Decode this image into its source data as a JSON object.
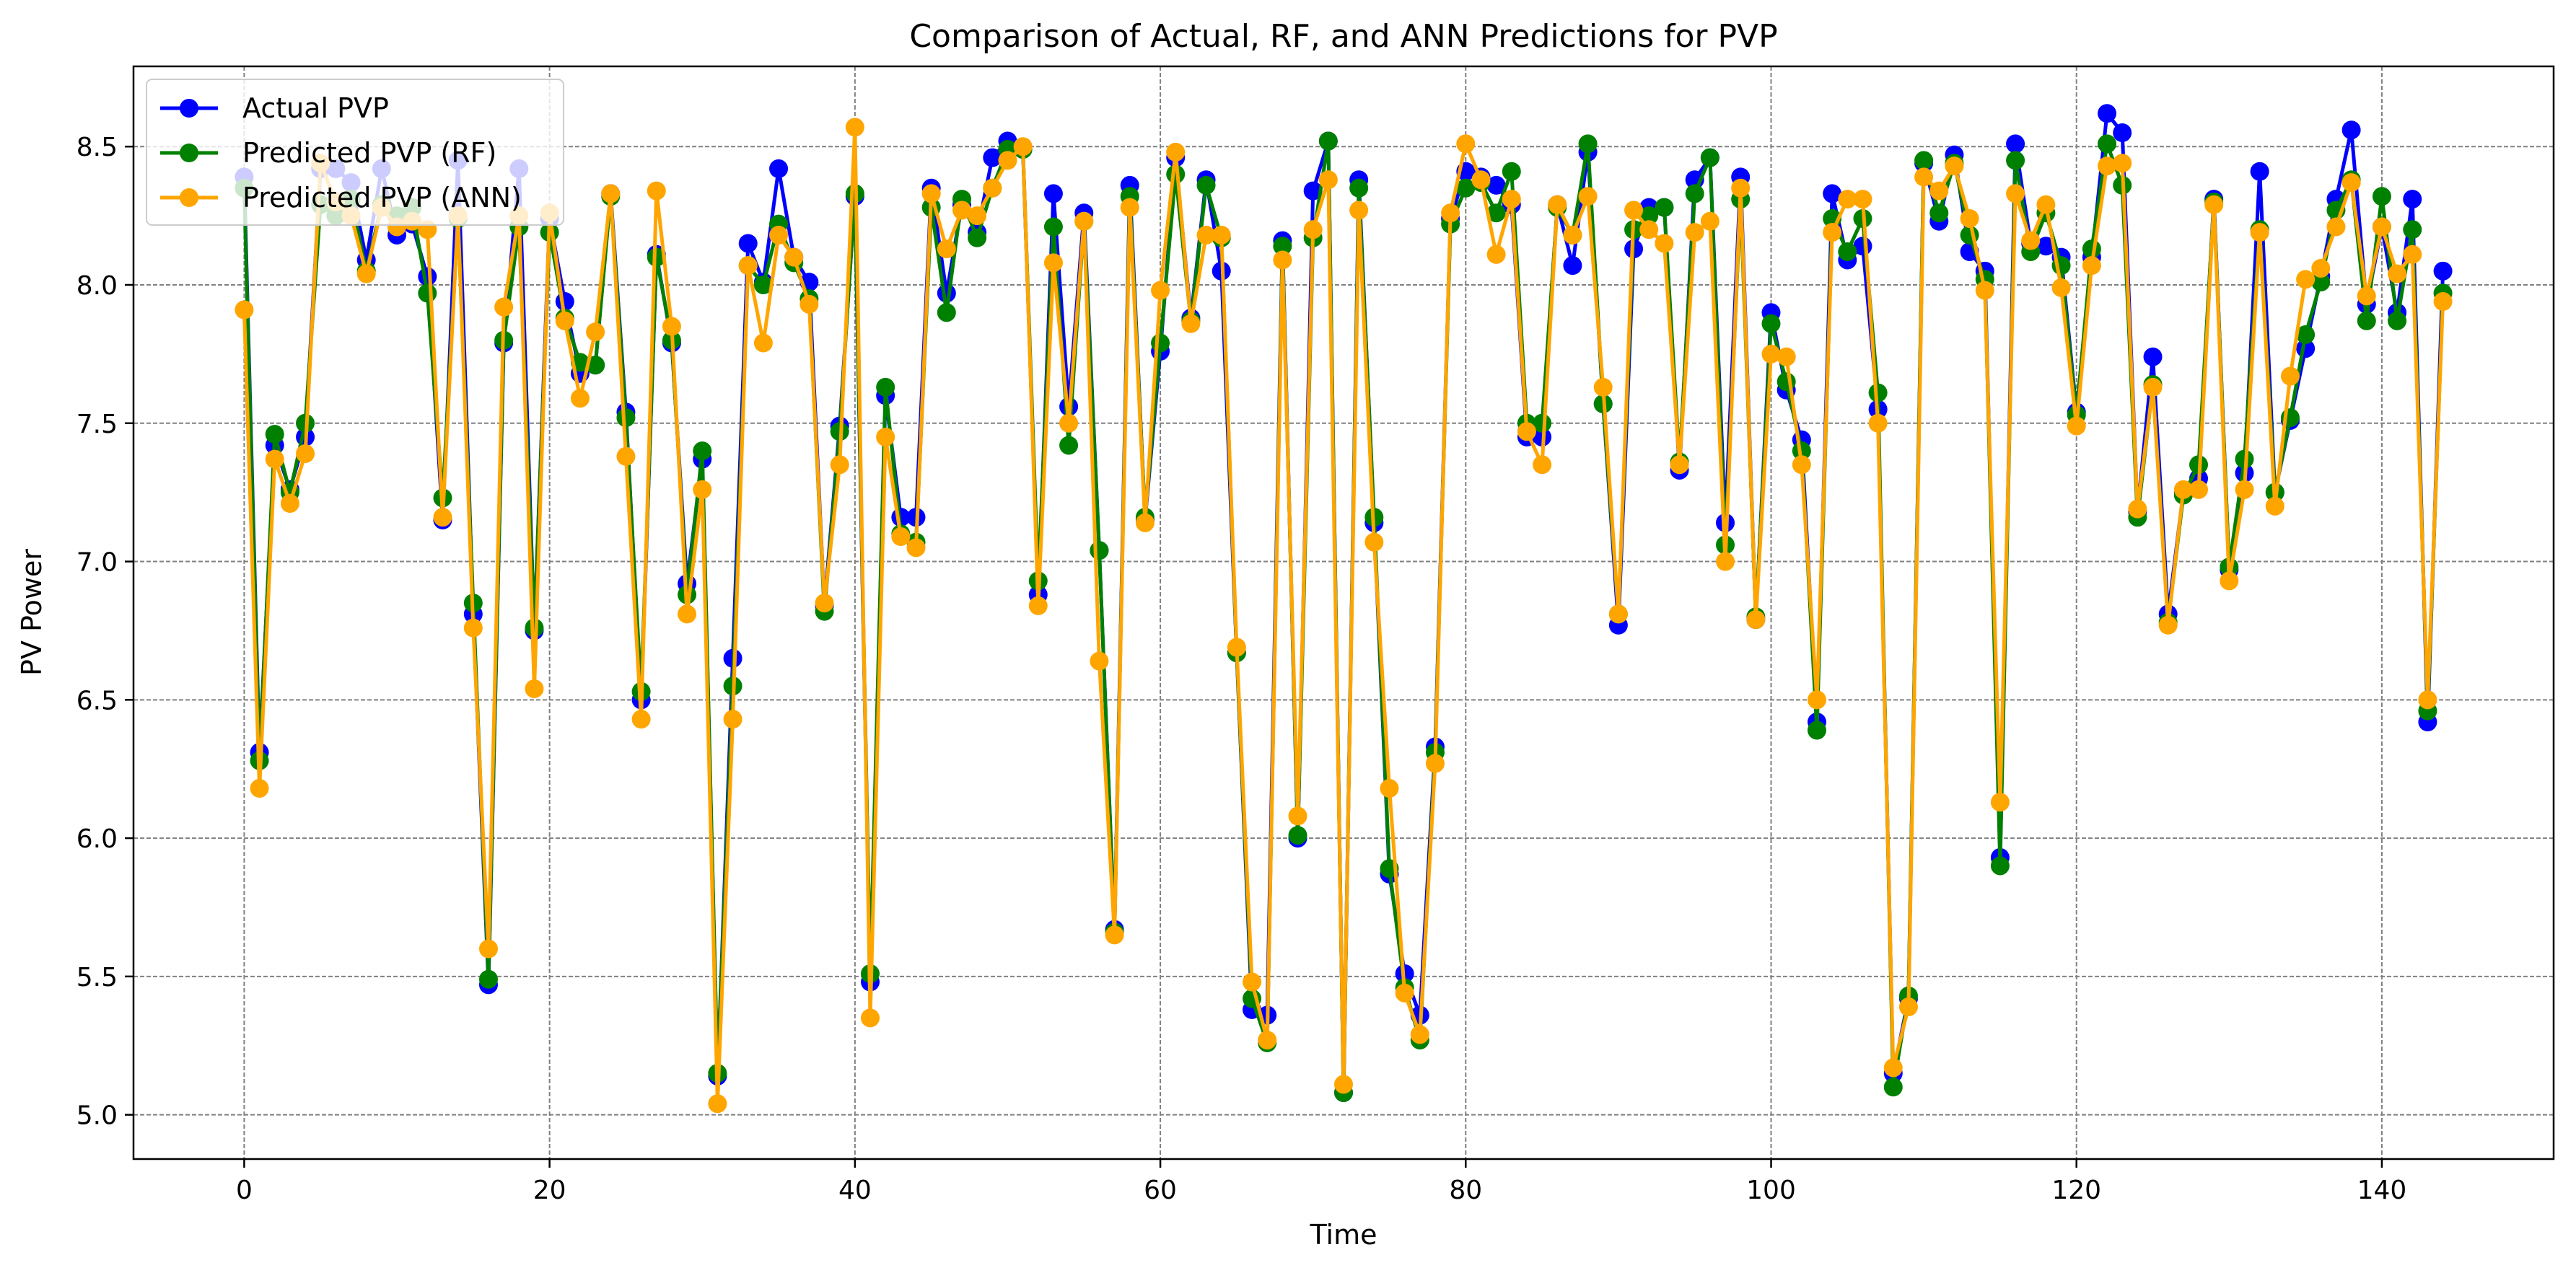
{
  "chart_data": {
    "type": "line",
    "title": "Comparison of Actual, RF, and ANN Predictions for PVP",
    "xlabel": "Time",
    "ylabel": "PV Power",
    "xlim": [
      -7.25,
      151.25
    ],
    "ylim": [
      4.84,
      8.79
    ],
    "xticks": [
      0,
      20,
      40,
      60,
      80,
      100,
      120,
      140
    ],
    "yticks": [
      5.0,
      5.5,
      6.0,
      6.5,
      7.0,
      7.5,
      8.0,
      8.5
    ],
    "xtick_labels": [
      "0",
      "20",
      "40",
      "60",
      "80",
      "100",
      "120",
      "140"
    ],
    "ytick_labels": [
      "5.0",
      "5.5",
      "6.0",
      "6.5",
      "7.0",
      "7.5",
      "8.0",
      "8.5"
    ],
    "grid": true,
    "legend_position": "top-left",
    "x": [
      0,
      1,
      2,
      3,
      4,
      5,
      6,
      7,
      8,
      9,
      10,
      11,
      12,
      13,
      14,
      15,
      16,
      17,
      18,
      19,
      20,
      21,
      22,
      23,
      24,
      25,
      26,
      27,
      28,
      29,
      30,
      31,
      32,
      33,
      34,
      35,
      36,
      37,
      38,
      39,
      40,
      41,
      42,
      43,
      44,
      45,
      46,
      47,
      48,
      49,
      50,
      51,
      52,
      53,
      54,
      55,
      56,
      57,
      58,
      59,
      60,
      61,
      62,
      63,
      64,
      65,
      66,
      67,
      68,
      69,
      70,
      71,
      72,
      73,
      74,
      75,
      76,
      77,
      78,
      79,
      80,
      81,
      82,
      83,
      84,
      85,
      86,
      87,
      88,
      89,
      90,
      91,
      92,
      93,
      94,
      95,
      96,
      97,
      98,
      99,
      100,
      101,
      102,
      103,
      104,
      105,
      106,
      107,
      108,
      109,
      110,
      111,
      112,
      113,
      114,
      115,
      116,
      117,
      118,
      119,
      120,
      121,
      122,
      123,
      124,
      125,
      126,
      127,
      128,
      129,
      130,
      131,
      132,
      133,
      134,
      135,
      136,
      137,
      138,
      139,
      140,
      141,
      142,
      143,
      144
    ],
    "series": [
      {
        "name": "Actual PVP",
        "color": "#0000ff",
        "values": [
          8.39,
          6.31,
          7.42,
          7.26,
          7.45,
          8.42,
          8.42,
          8.37,
          8.09,
          8.42,
          8.18,
          8.22,
          8.03,
          7.15,
          8.45,
          6.81,
          5.47,
          7.79,
          8.42,
          6.75,
          8.24,
          7.94,
          7.68,
          7.71,
          8.33,
          7.54,
          6.5,
          8.11,
          7.79,
          6.92,
          7.37,
          5.14,
          6.65,
          8.15,
          8.01,
          8.42,
          8.1,
          8.01,
          6.84,
          7.49,
          8.32,
          5.48,
          7.6,
          7.16,
          7.16,
          8.35,
          7.97,
          8.29,
          8.19,
          8.46,
          8.52,
          8.49,
          6.88,
          8.33,
          7.56,
          8.26,
          7.04,
          5.67,
          8.36,
          7.15,
          7.76,
          8.46,
          7.88,
          8.38,
          8.05,
          6.67,
          5.38,
          5.36,
          8.16,
          6.0,
          8.34,
          8.52,
          5.08,
          8.38,
          7.14,
          5.87,
          5.51,
          5.36,
          6.33,
          8.24,
          8.41,
          8.39,
          8.36,
          8.29,
          7.45,
          7.45,
          8.29,
          8.07,
          8.48,
          7.57,
          6.77,
          8.13,
          8.28,
          8.28,
          7.33,
          8.38,
          8.46,
          7.14,
          8.39,
          6.79,
          7.9,
          7.62,
          7.44,
          6.42,
          8.33,
          8.09,
          8.14,
          7.55,
          5.15,
          5.42,
          8.44,
          8.23,
          8.47,
          8.12,
          8.05,
          5.93,
          8.51,
          8.15,
          8.14,
          8.1,
          7.54,
          8.1,
          8.62,
          8.55,
          7.18,
          7.74,
          6.81,
          7.25,
          7.3,
          8.31,
          6.97,
          7.32,
          8.41,
          7.25,
          7.51,
          7.77,
          8.03,
          8.31,
          8.56,
          7.93,
          8.21,
          7.9,
          8.31,
          6.42,
          8.05
        ]
      },
      {
        "name": "Predicted PVP (RF)",
        "color": "#008000",
        "values": [
          8.35,
          6.28,
          7.46,
          7.25,
          7.5,
          8.29,
          8.25,
          8.31,
          8.05,
          8.29,
          8.25,
          8.28,
          7.97,
          7.23,
          8.24,
          6.85,
          5.49,
          7.8,
          8.21,
          6.76,
          8.19,
          7.88,
          7.72,
          7.71,
          8.32,
          7.52,
          6.53,
          8.1,
          7.8,
          6.88,
          7.4,
          5.15,
          6.55,
          8.07,
          8.0,
          8.22,
          8.08,
          7.95,
          6.82,
          7.47,
          8.33,
          5.51,
          7.63,
          7.1,
          7.07,
          8.28,
          7.9,
          8.31,
          8.17,
          8.35,
          8.49,
          8.49,
          6.93,
          8.21,
          7.42,
          8.23,
          7.04,
          5.66,
          8.32,
          7.16,
          7.79,
          8.4,
          7.87,
          8.36,
          8.17,
          6.67,
          5.42,
          5.26,
          8.14,
          6.01,
          8.17,
          8.52,
          5.08,
          8.35,
          7.16,
          5.89,
          5.46,
          5.27,
          6.31,
          8.22,
          8.35,
          8.37,
          8.26,
          8.41,
          7.5,
          7.5,
          8.28,
          8.18,
          8.51,
          7.57,
          6.81,
          8.2,
          8.25,
          8.28,
          7.36,
          8.33,
          8.46,
          7.06,
          8.31,
          6.8,
          7.86,
          7.65,
          7.4,
          6.39,
          8.24,
          8.12,
          8.24,
          7.61,
          5.1,
          5.43,
          8.45,
          8.26,
          8.44,
          8.18,
          8.02,
          5.9,
          8.45,
          8.12,
          8.26,
          8.07,
          7.53,
          8.13,
          8.51,
          8.36,
          7.16,
          7.64,
          6.78,
          7.24,
          7.35,
          8.3,
          6.98,
          7.37,
          8.2,
          7.25,
          7.52,
          7.82,
          8.01,
          8.27,
          8.38,
          7.87,
          8.32,
          7.87,
          8.2,
          6.46,
          7.97
        ]
      },
      {
        "name": "Predicted PVP (ANN)",
        "color": "#ffa500",
        "values": [
          7.91,
          6.18,
          7.37,
          7.21,
          7.39,
          8.44,
          8.3,
          8.25,
          8.04,
          8.28,
          8.21,
          8.23,
          8.2,
          7.16,
          8.25,
          6.76,
          5.6,
          7.92,
          8.25,
          6.54,
          8.26,
          7.87,
          7.59,
          7.83,
          8.33,
          7.38,
          6.43,
          8.34,
          7.85,
          6.81,
          7.26,
          5.04,
          6.43,
          8.07,
          7.79,
          8.18,
          8.1,
          7.93,
          6.85,
          7.35,
          8.57,
          5.35,
          7.45,
          7.09,
          7.05,
          8.33,
          8.13,
          8.27,
          8.25,
          8.35,
          8.45,
          8.5,
          6.84,
          8.08,
          7.5,
          8.23,
          6.64,
          5.65,
          8.28,
          7.14,
          7.98,
          8.48,
          7.86,
          8.18,
          8.18,
          6.69,
          5.48,
          5.27,
          8.09,
          6.08,
          8.2,
          8.38,
          5.11,
          8.27,
          7.07,
          6.18,
          5.44,
          5.29,
          6.27,
          8.26,
          8.51,
          8.38,
          8.11,
          8.31,
          7.47,
          7.35,
          8.29,
          8.18,
          8.32,
          7.63,
          6.81,
          8.27,
          8.2,
          8.15,
          7.35,
          8.19,
          8.23,
          7.0,
          8.35,
          6.79,
          7.75,
          7.74,
          7.35,
          6.5,
          8.19,
          8.31,
          8.31,
          7.5,
          5.17,
          5.39,
          8.39,
          8.34,
          8.43,
          8.24,
          7.98,
          6.13,
          8.33,
          8.16,
          8.29,
          7.99,
          7.49,
          8.07,
          8.43,
          8.44,
          7.19,
          7.63,
          6.77,
          7.26,
          7.26,
          8.29,
          6.93,
          7.26,
          8.19,
          7.2,
          7.67,
          8.02,
          8.06,
          8.21,
          8.37,
          7.96,
          8.21,
          8.04,
          8.11,
          6.5,
          7.94
        ]
      }
    ]
  }
}
